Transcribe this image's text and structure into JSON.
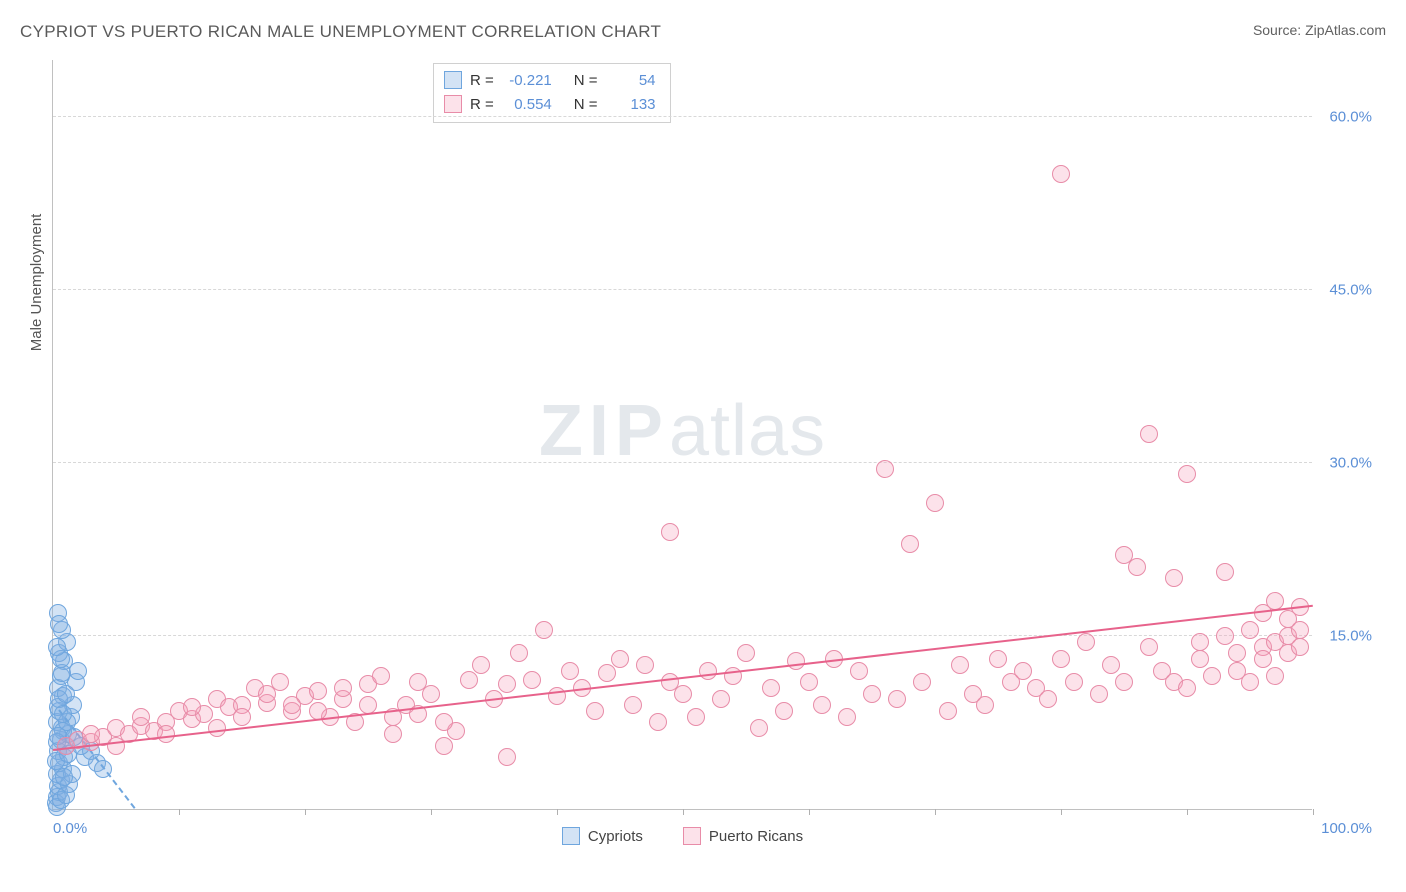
{
  "title": "CYPRIOT VS PUERTO RICAN MALE UNEMPLOYMENT CORRELATION CHART",
  "source": "Source: ZipAtlas.com",
  "ylabel": "Male Unemployment",
  "watermark_a": "ZIP",
  "watermark_b": "atlas",
  "xlim": [
    0,
    100
  ],
  "ylim": [
    0,
    65
  ],
  "xtick_label_left": "0.0%",
  "xtick_label_right": "100.0%",
  "ytick_labels": [
    {
      "v": 15,
      "t": "15.0%"
    },
    {
      "v": 30,
      "t": "30.0%"
    },
    {
      "v": 45,
      "t": "45.0%"
    },
    {
      "v": 60,
      "t": "60.0%"
    }
  ],
  "xtick_positions": [
    10,
    20,
    30,
    40,
    50,
    60,
    70,
    80,
    90,
    100
  ],
  "colors": {
    "cypriot_fill": "rgba(130,175,225,0.35)",
    "cypriot_stroke": "#6fa6de",
    "pr_fill": "rgba(245,160,185,0.30)",
    "pr_stroke": "#e88ca8",
    "trend_cypriot": "#6fa6de",
    "trend_pr": "#e7628b",
    "tick_label": "#5b8fd6",
    "grid": "#d8d8d8"
  },
  "marker_radius": 9,
  "series": [
    {
      "name": "Cypriots",
      "color_key": "cypriot",
      "trend": {
        "x1": 0.5,
        "y1": 8.5,
        "x2": 6.5,
        "y2": 0.0,
        "dashed": true
      },
      "R_label": "R =",
      "R": "-0.221",
      "N_label": "N =",
      "N": "54",
      "points": [
        [
          0.2,
          0.5
        ],
        [
          0.3,
          1.0
        ],
        [
          0.5,
          1.5
        ],
        [
          0.4,
          2.0
        ],
        [
          0.6,
          2.5
        ],
        [
          0.3,
          3.0
        ],
        [
          0.8,
          3.5
        ],
        [
          0.5,
          4.0
        ],
        [
          0.9,
          4.5
        ],
        [
          0.4,
          5.0
        ],
        [
          1.0,
          5.5
        ],
        [
          0.6,
          6.0
        ],
        [
          1.2,
          6.5
        ],
        [
          0.7,
          7.0
        ],
        [
          0.3,
          7.5
        ],
        [
          1.4,
          8.0
        ],
        [
          0.5,
          8.5
        ],
        [
          1.6,
          9.0
        ],
        [
          0.8,
          9.8
        ],
        [
          0.4,
          10.5
        ],
        [
          1.8,
          11.0
        ],
        [
          0.6,
          11.5
        ],
        [
          2.0,
          12.0
        ],
        [
          0.9,
          12.8
        ],
        [
          0.5,
          13.5
        ],
        [
          1.1,
          14.5
        ],
        [
          0.7,
          15.5
        ],
        [
          0.4,
          17.0
        ],
        [
          2.5,
          4.5
        ],
        [
          3.0,
          5.0
        ],
        [
          3.5,
          4.0
        ],
        [
          4.0,
          3.5
        ],
        [
          0.3,
          0.2
        ],
        [
          0.6,
          0.8
        ],
        [
          1.0,
          1.2
        ],
        [
          1.3,
          2.2
        ],
        [
          0.2,
          4.2
        ],
        [
          0.8,
          6.8
        ],
        [
          1.5,
          3.0
        ],
        [
          0.4,
          8.8
        ],
        [
          0.9,
          2.8
        ],
        [
          0.3,
          5.8
        ],
        [
          1.1,
          7.5
        ],
        [
          0.5,
          9.5
        ],
        [
          0.7,
          11.8
        ],
        [
          1.2,
          4.8
        ],
        [
          0.4,
          6.3
        ],
        [
          0.8,
          8.2
        ],
        [
          1.0,
          10.0
        ],
        [
          0.6,
          13.0
        ],
        [
          0.3,
          14.0
        ],
        [
          2.2,
          5.5
        ],
        [
          1.7,
          6.2
        ],
        [
          0.5,
          16.0
        ]
      ]
    },
    {
      "name": "Puerto Ricans",
      "color_key": "pr",
      "trend": {
        "x1": 0,
        "y1": 5.0,
        "x2": 100,
        "y2": 17.5,
        "dashed": false
      },
      "R_label": "R =",
      "R": "0.554",
      "N_label": "N =",
      "N": "133",
      "points": [
        [
          1,
          5.5
        ],
        [
          2,
          6.0
        ],
        [
          3,
          5.8
        ],
        [
          4,
          6.2
        ],
        [
          5,
          7.0
        ],
        [
          6,
          6.5
        ],
        [
          7,
          7.2
        ],
        [
          8,
          6.8
        ],
        [
          9,
          7.5
        ],
        [
          10,
          8.5
        ],
        [
          11,
          7.8
        ],
        [
          12,
          8.2
        ],
        [
          13,
          9.5
        ],
        [
          14,
          8.8
        ],
        [
          15,
          9.0
        ],
        [
          16,
          10.5
        ],
        [
          17,
          9.2
        ],
        [
          18,
          11.0
        ],
        [
          19,
          8.5
        ],
        [
          20,
          9.8
        ],
        [
          21,
          10.2
        ],
        [
          22,
          8.0
        ],
        [
          23,
          9.5
        ],
        [
          24,
          7.5
        ],
        [
          25,
          10.8
        ],
        [
          26,
          11.5
        ],
        [
          27,
          6.5
        ],
        [
          28,
          9.0
        ],
        [
          29,
          8.2
        ],
        [
          30,
          10.0
        ],
        [
          31,
          5.5
        ],
        [
          32,
          6.8
        ],
        [
          33,
          11.2
        ],
        [
          34,
          12.5
        ],
        [
          35,
          9.5
        ],
        [
          36,
          10.8
        ],
        [
          36,
          4.5
        ],
        [
          37,
          13.5
        ],
        [
          38,
          11.2
        ],
        [
          39,
          15.5
        ],
        [
          40,
          9.8
        ],
        [
          41,
          12.0
        ],
        [
          42,
          10.5
        ],
        [
          43,
          8.5
        ],
        [
          44,
          11.8
        ],
        [
          45,
          13.0
        ],
        [
          46,
          9.0
        ],
        [
          47,
          12.5
        ],
        [
          48,
          7.5
        ],
        [
          49,
          11.0
        ],
        [
          49,
          24.0
        ],
        [
          50,
          10.0
        ],
        [
          51,
          8.0
        ],
        [
          52,
          12.0
        ],
        [
          53,
          9.5
        ],
        [
          54,
          11.5
        ],
        [
          55,
          13.5
        ],
        [
          56,
          7.0
        ],
        [
          57,
          10.5
        ],
        [
          58,
          8.5
        ],
        [
          59,
          12.8
        ],
        [
          60,
          11.0
        ],
        [
          61,
          9.0
        ],
        [
          62,
          13.0
        ],
        [
          63,
          8.0
        ],
        [
          64,
          12.0
        ],
        [
          65,
          10.0
        ],
        [
          66,
          29.5
        ],
        [
          67,
          9.5
        ],
        [
          68,
          23.0
        ],
        [
          69,
          11.0
        ],
        [
          70,
          26.5
        ],
        [
          71,
          8.5
        ],
        [
          72,
          12.5
        ],
        [
          73,
          10.0
        ],
        [
          74,
          9.0
        ],
        [
          75,
          13.0
        ],
        [
          76,
          11.0
        ],
        [
          77,
          12.0
        ],
        [
          78,
          10.5
        ],
        [
          79,
          9.5
        ],
        [
          80,
          13.0
        ],
        [
          80,
          55.0
        ],
        [
          81,
          11.0
        ],
        [
          82,
          14.5
        ],
        [
          83,
          10.0
        ],
        [
          84,
          12.5
        ],
        [
          85,
          22.0
        ],
        [
          85,
          11.0
        ],
        [
          86,
          21.0
        ],
        [
          87,
          32.5
        ],
        [
          87,
          14.0
        ],
        [
          88,
          12.0
        ],
        [
          89,
          20.0
        ],
        [
          89,
          11.0
        ],
        [
          90,
          29.0
        ],
        [
          90,
          10.5
        ],
        [
          91,
          14.5
        ],
        [
          91,
          13.0
        ],
        [
          92,
          11.5
        ],
        [
          93,
          20.5
        ],
        [
          93,
          15.0
        ],
        [
          94,
          13.5
        ],
        [
          94,
          12.0
        ],
        [
          95,
          11.0
        ],
        [
          95,
          15.5
        ],
        [
          96,
          17.0
        ],
        [
          96,
          14.0
        ],
        [
          96,
          13.0
        ],
        [
          97,
          14.5
        ],
        [
          97,
          18.0
        ],
        [
          97,
          11.5
        ],
        [
          98,
          15.0
        ],
        [
          98,
          13.5
        ],
        [
          98,
          16.5
        ],
        [
          99,
          14.0
        ],
        [
          99,
          15.5
        ],
        [
          99,
          17.5
        ],
        [
          3,
          6.5
        ],
        [
          5,
          5.5
        ],
        [
          7,
          8.0
        ],
        [
          9,
          6.5
        ],
        [
          11,
          8.8
        ],
        [
          13,
          7.0
        ],
        [
          15,
          8.0
        ],
        [
          17,
          10.0
        ],
        [
          19,
          9.0
        ],
        [
          21,
          8.5
        ],
        [
          23,
          10.5
        ],
        [
          25,
          9.0
        ],
        [
          27,
          8.0
        ],
        [
          29,
          11.0
        ],
        [
          31,
          7.5
        ]
      ]
    }
  ]
}
